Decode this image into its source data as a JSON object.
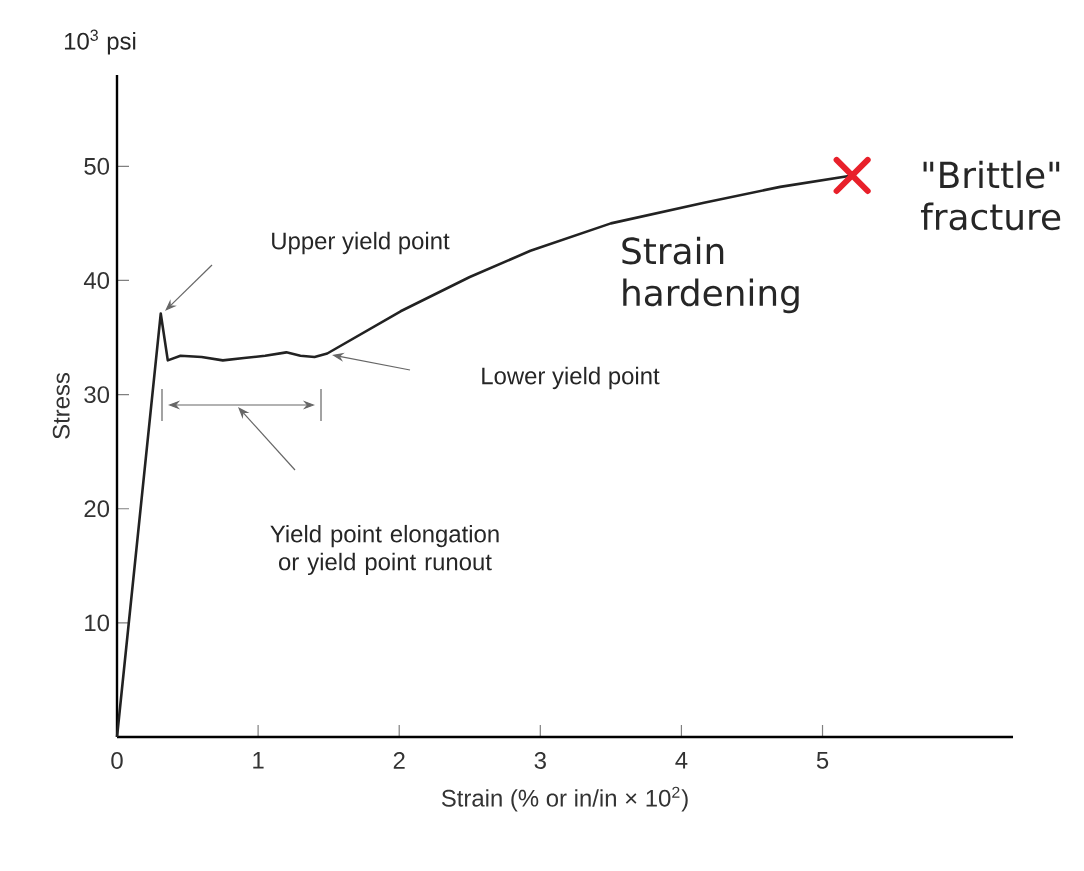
{
  "chart_data": {
    "type": "line",
    "xlabel": "Strain (% or in/in × 10$^{2}$)",
    "ylabel": "Stress",
    "xlim": [
      0,
      6.35
    ],
    "ylim": [
      0,
      58
    ],
    "xticks": [
      0,
      1,
      2,
      3,
      4,
      5
    ],
    "yticks": [
      10,
      20,
      30,
      40,
      50
    ],
    "grid": false,
    "marker": "none",
    "line_style": "solid",
    "series": [
      {
        "color": "#222222",
        "x": [
          0,
          0.31,
          0.36,
          0.45,
          0.6,
          0.75,
          0.9,
          1.05,
          1.2,
          1.3,
          1.4,
          1.49,
          2.01,
          2.5,
          2.93,
          3.5,
          4.16,
          4.7,
          5.21
        ],
        "values": [
          0,
          37.1,
          33.0,
          33.4,
          33.3,
          33.0,
          33.2,
          33.4,
          33.7,
          33.4,
          33.3,
          33.6,
          37.3,
          40.3,
          42.6,
          45.0,
          46.8,
          48.2,
          49.2
        ]
      },
      {
        "type": "scatter",
        "marker": "cross",
        "color": "#e8202a",
        "x": [
          5.21
        ],
        "values": [
          49.2
        ]
      }
    ],
    "annotations": [
      "10$^{3}$ psi",
      "Upper yield point",
      "Lower yield point",
      "Yield point elongation or yield point runout",
      "Strain hardening",
      {
        "text": "\"Brittle\" fracture",
        "x": 5.21,
        "y": 49.2
      }
    ]
  }
}
